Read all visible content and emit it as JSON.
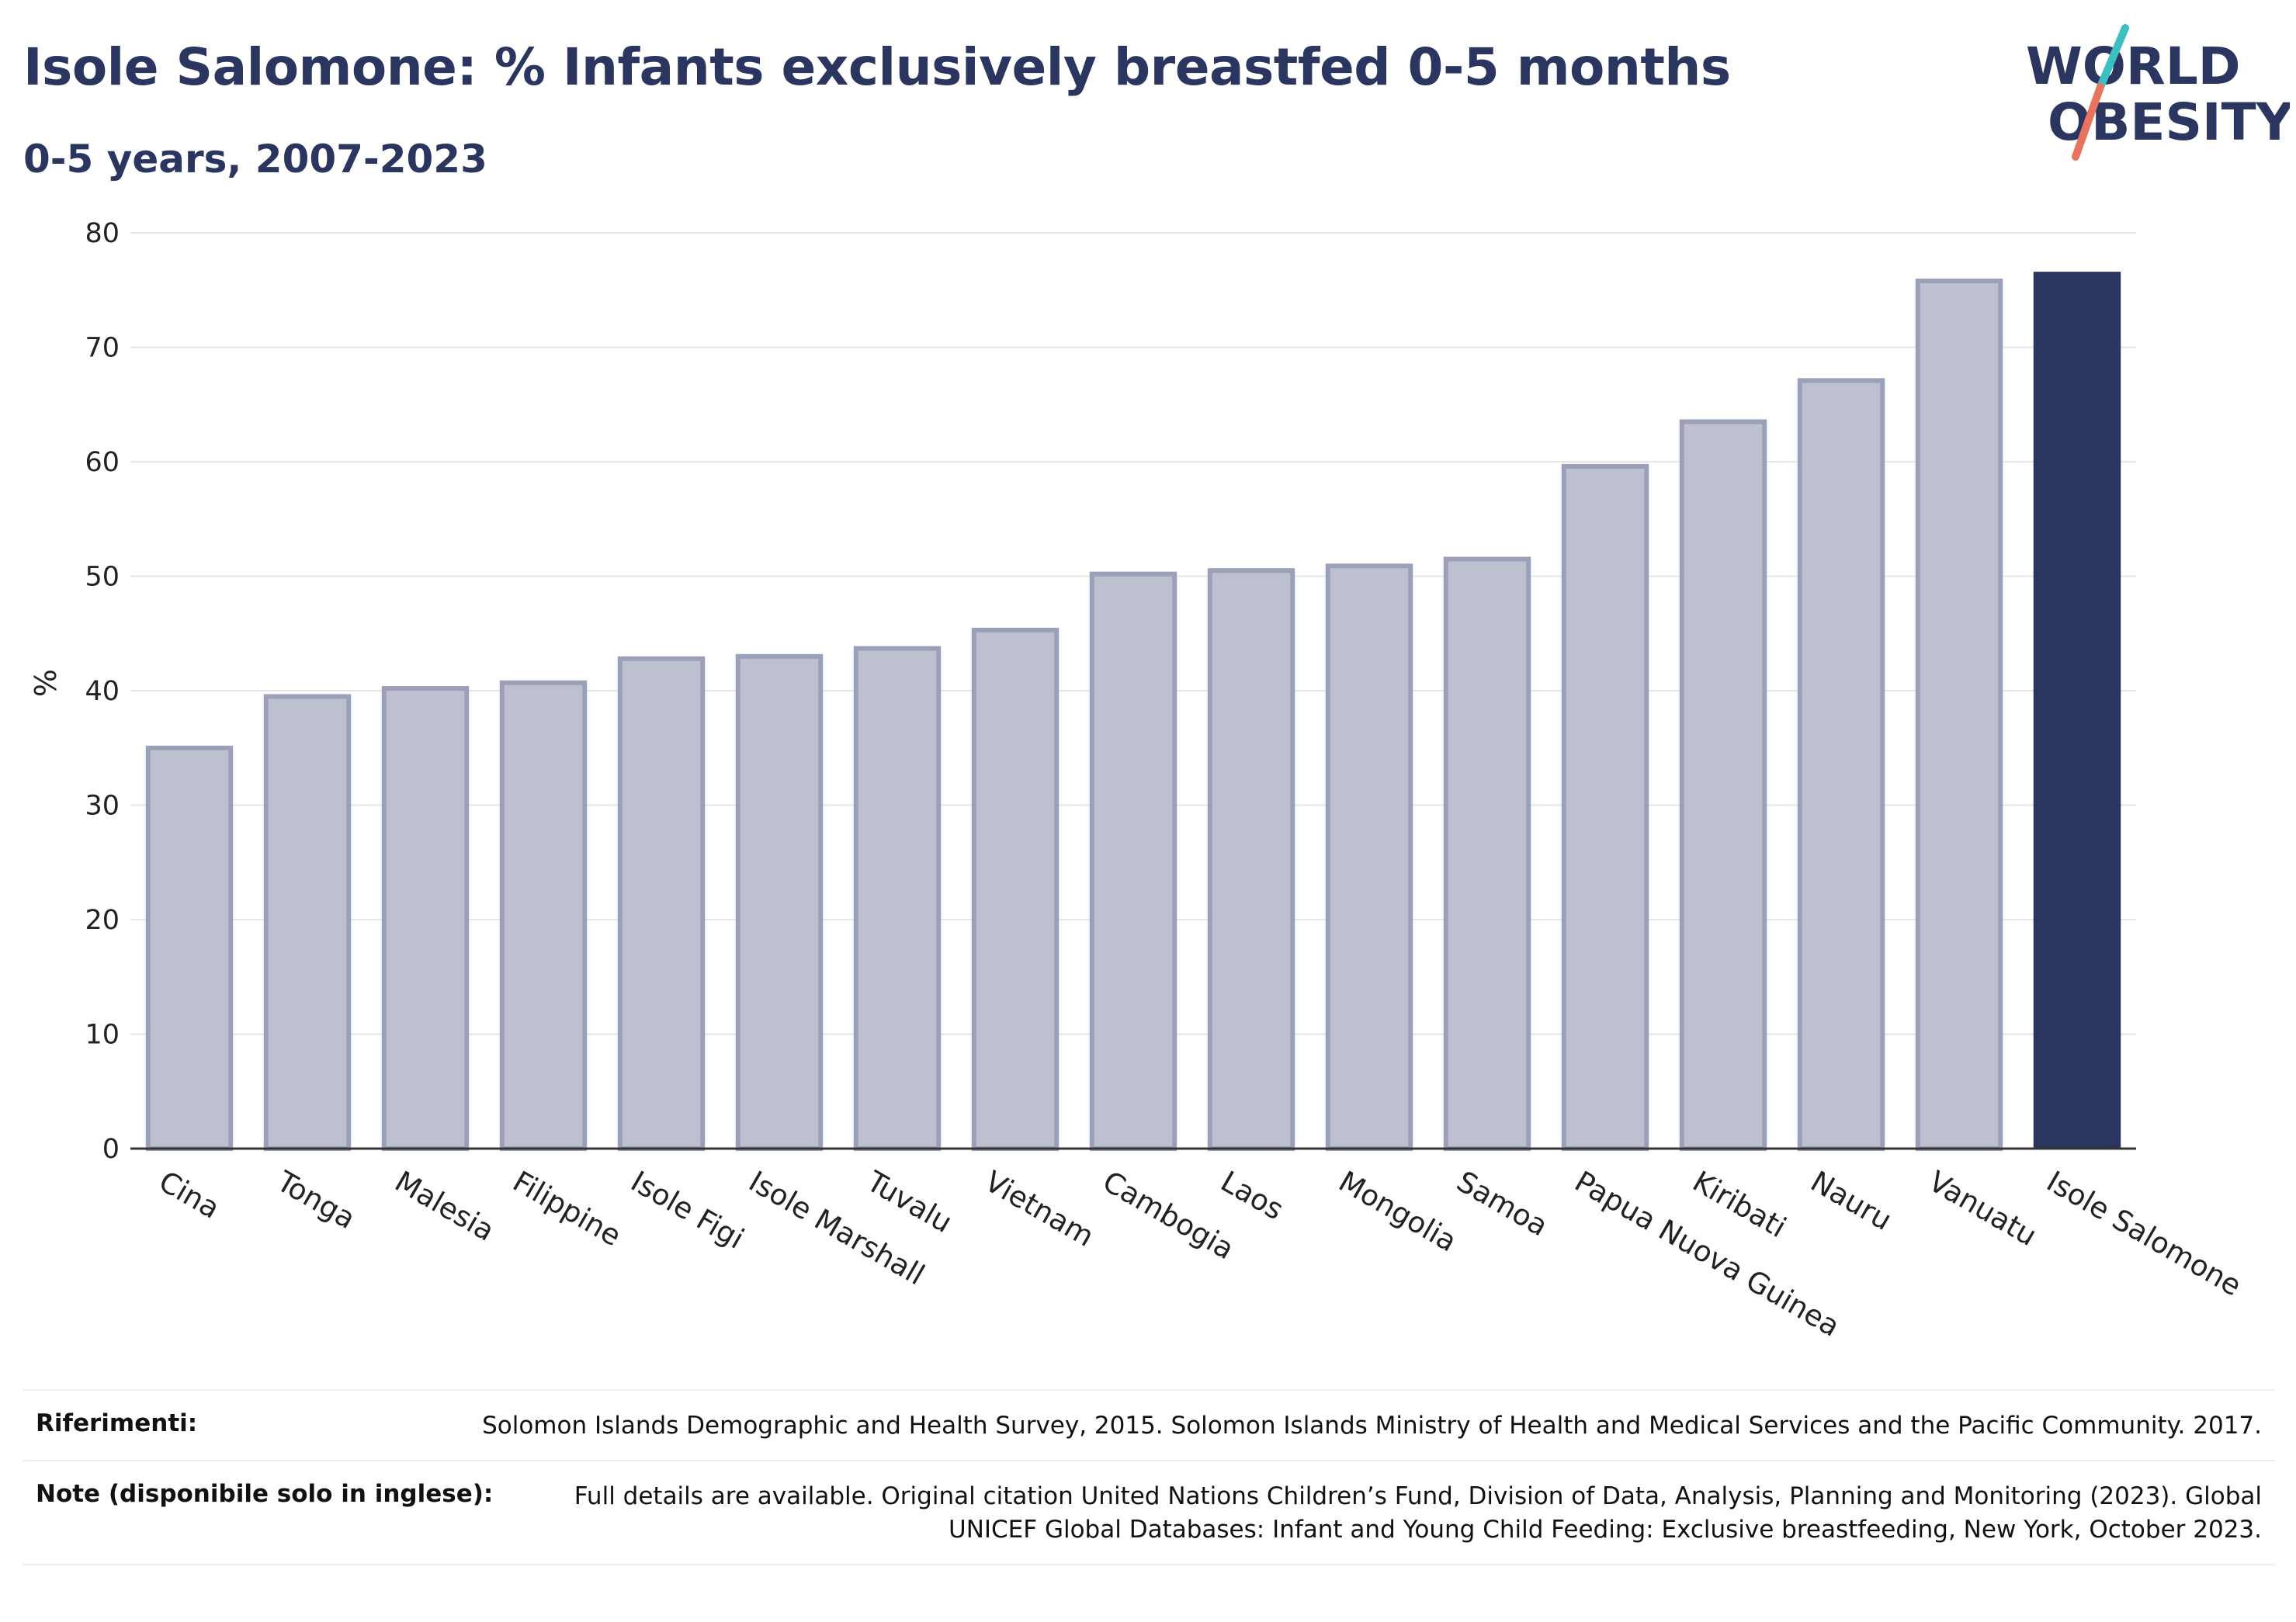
{
  "header": {
    "title": "Isole Salomone: % Infants exclusively breastfed 0-5 months",
    "subtitle": "0-5 years, 2007-2023"
  },
  "logo": {
    "line1": "WORLD",
    "line2": "OBESITY",
    "text_color": "#2a3560",
    "stroke_teal": "#3bbfc1",
    "stroke_coral": "#e8735f"
  },
  "chart_data": {
    "type": "bar",
    "categories": [
      "Cina",
      "Tonga",
      "Malesia",
      "Filippine",
      "Isole Figi",
      "Isole Marshall",
      "Tuvalu",
      "Vietnam",
      "Cambogia",
      "Laos",
      "Mongolia",
      "Samoa",
      "Papua Nuova Guinea",
      "Kiribati",
      "Nauru",
      "Vanuatu",
      "Isole Salomone"
    ],
    "values": [
      35.2,
      39.7,
      40.4,
      40.9,
      43.0,
      43.2,
      43.9,
      45.5,
      50.4,
      50.7,
      51.1,
      51.7,
      59.8,
      63.7,
      67.3,
      76.0,
      76.6
    ],
    "highlight": "Isole Salomone",
    "ylabel": "%",
    "ylim": [
      0,
      80
    ],
    "yticks": [
      0,
      10,
      20,
      30,
      40,
      50,
      60,
      70,
      80
    ],
    "grid": true,
    "colors": {
      "bar_fill": "#bcc0cf",
      "bar_stroke": "#9aa0b8",
      "highlight_fill": "#2a3560"
    }
  },
  "references": {
    "rows": [
      {
        "label": "Riferimenti:",
        "text": "Solomon Islands Demographic and Health Survey, 2015. Solomon Islands Ministry of Health and Medical Services and the Pacific Community. 2017."
      },
      {
        "label": "Note (disponibile solo in inglese):",
        "text": "Full details are available. Original citation United Nations Children’s Fund, Division of Data, Analysis, Planning and Monitoring (2023). Global UNICEF Global Databases: Infant and Young Child Feeding: Exclusive breastfeeding, New York, October 2023."
      }
    ]
  }
}
